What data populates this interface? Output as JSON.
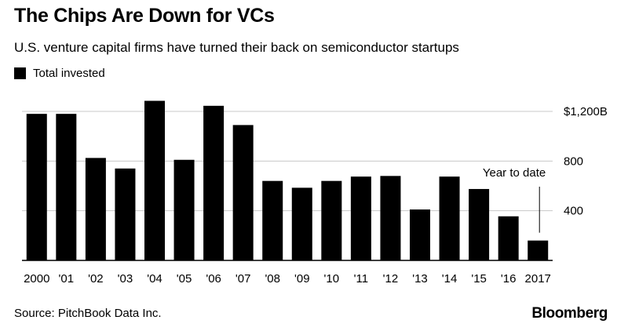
{
  "header": {
    "title": "The Chips Are Down for VCs",
    "subtitle": "U.S. venture capital firms have turned their back on semiconductor startups"
  },
  "legend": {
    "label": "Total invested",
    "color": "#000000"
  },
  "chart_data": {
    "type": "bar",
    "categories": [
      "2000",
      "'01",
      "'02",
      "'03",
      "'04",
      "'05",
      "'06",
      "'07",
      "'08",
      "'09",
      "'10",
      "'11",
      "'12",
      "'13",
      "'14",
      "'15",
      "'16",
      "2017"
    ],
    "series": [
      {
        "name": "Total invested",
        "values": [
          1180,
          1180,
          825,
          740,
          1285,
          810,
          1245,
          1090,
          640,
          585,
          640,
          675,
          680,
          410,
          675,
          575,
          355,
          160
        ]
      }
    ],
    "ylim": [
      0,
      1350
    ],
    "yticks": [
      {
        "value": 400,
        "label": "400"
      },
      {
        "value": 800,
        "label": "800"
      },
      {
        "value": 1200,
        "label": "$1,200B"
      }
    ],
    "grid": true,
    "annotation": {
      "text": "Year to date",
      "category": "2017"
    },
    "bar_color": "#000000",
    "grid_color": "#c8c8c8"
  },
  "footer": {
    "source": "Source: PitchBook Data Inc.",
    "logo": "Bloomberg"
  }
}
